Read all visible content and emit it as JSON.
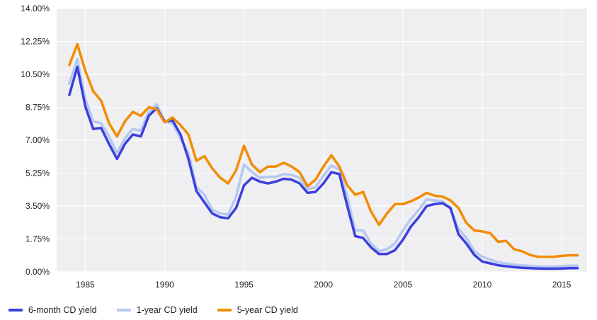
{
  "chart_data": {
    "type": "line",
    "title": "",
    "xlabel": "",
    "ylabel": "",
    "xlim": [
      1983.2,
      2016.6
    ],
    "ylim": [
      0,
      14
    ],
    "grid": true,
    "legend_position": "bottom-left",
    "x_ticks": [
      1985,
      1990,
      1995,
      2000,
      2005,
      2010,
      2015
    ],
    "x_tick_labels": [
      "1985",
      "1990",
      "1995",
      "2000",
      "2005",
      "2010",
      "2015"
    ],
    "y_ticks": [
      0,
      1.75,
      3.5,
      5.25,
      7.0,
      8.75,
      10.5,
      12.25,
      14.0
    ],
    "y_tick_labels": [
      "0.00%",
      "1.75%",
      "3.50%",
      "5.25%",
      "7.00%",
      "8.75%",
      "10.50%",
      "12.25%",
      "14.00%"
    ],
    "series": [
      {
        "name": "6-month CD yield",
        "color": "#3b3fdd",
        "x": [
          1984,
          1984.5,
          1985,
          1985.5,
          1986,
          1986.5,
          1987,
          1987.5,
          1988,
          1988.5,
          1989,
          1989.5,
          1990,
          1990.5,
          1991,
          1991.5,
          1992,
          1992.5,
          1993,
          1993.5,
          1994,
          1994.5,
          1995,
          1995.5,
          1996,
          1996.5,
          1997,
          1997.5,
          1998,
          1998.5,
          1999,
          1999.5,
          2000,
          2000.5,
          2001,
          2001.5,
          2002,
          2002.5,
          2003,
          2003.5,
          2004,
          2004.5,
          2005,
          2005.5,
          2006,
          2006.5,
          2007,
          2007.5,
          2008,
          2008.5,
          2009,
          2009.5,
          2010,
          2010.5,
          2011,
          2011.5,
          2012,
          2012.5,
          2013,
          2013.5,
          2014,
          2014.5,
          2015,
          2015.5,
          2016
        ],
        "values": [
          9.4,
          10.9,
          8.8,
          7.6,
          7.65,
          6.8,
          6.0,
          6.8,
          7.3,
          7.2,
          8.3,
          8.7,
          8.0,
          8.05,
          7.3,
          6.0,
          4.3,
          3.7,
          3.1,
          2.9,
          2.85,
          3.4,
          4.6,
          5.0,
          4.8,
          4.7,
          4.8,
          4.95,
          4.9,
          4.7,
          4.2,
          4.25,
          4.7,
          5.3,
          5.2,
          3.5,
          1.9,
          1.8,
          1.3,
          0.95,
          0.95,
          1.15,
          1.7,
          2.4,
          2.9,
          3.5,
          3.6,
          3.65,
          3.4,
          2.0,
          1.5,
          0.9,
          0.55,
          0.45,
          0.35,
          0.3,
          0.25,
          0.22,
          0.2,
          0.18,
          0.17,
          0.17,
          0.18,
          0.2,
          0.2
        ]
      },
      {
        "name": "1-year CD yield",
        "color": "#b3c8f2",
        "x": [
          1984,
          1984.5,
          1985,
          1985.5,
          1986,
          1986.5,
          1987,
          1987.5,
          1988,
          1988.5,
          1989,
          1989.5,
          1990,
          1990.5,
          1991,
          1991.5,
          1992,
          1992.5,
          1993,
          1993.5,
          1994,
          1994.5,
          1995,
          1995.5,
          1996,
          1996.5,
          1997,
          1997.5,
          1998,
          1998.5,
          1999,
          1999.5,
          2000,
          2000.5,
          2001,
          2001.5,
          2002,
          2002.5,
          2003,
          2003.5,
          2004,
          2004.5,
          2005,
          2005.5,
          2006,
          2006.5,
          2007,
          2007.5,
          2008,
          2008.5,
          2009,
          2009.5,
          2010,
          2010.5,
          2011,
          2011.5,
          2012,
          2012.5,
          2013,
          2013.5,
          2014,
          2014.5,
          2015,
          2015.5,
          2016
        ],
        "values": [
          10.0,
          11.3,
          9.2,
          8.0,
          7.9,
          7.2,
          6.3,
          7.1,
          7.6,
          7.5,
          8.5,
          8.9,
          8.0,
          7.9,
          7.1,
          6.3,
          4.5,
          4.1,
          3.3,
          3.1,
          3.05,
          4.0,
          5.7,
          5.3,
          5.0,
          5.05,
          5.05,
          5.2,
          5.15,
          5.0,
          4.4,
          4.5,
          5.1,
          5.65,
          5.45,
          4.0,
          2.2,
          2.2,
          1.5,
          1.1,
          1.2,
          1.5,
          2.2,
          2.8,
          3.3,
          3.85,
          3.8,
          3.75,
          3.35,
          2.3,
          1.8,
          1.1,
          0.8,
          0.65,
          0.5,
          0.45,
          0.38,
          0.35,
          0.32,
          0.27,
          0.27,
          0.28,
          0.3,
          0.33,
          0.33
        ]
      },
      {
        "name": "5-year CD yield",
        "color": "#f28c00",
        "x": [
          1984,
          1984.5,
          1985,
          1985.5,
          1986,
          1986.5,
          1987,
          1987.5,
          1988,
          1988.5,
          1989,
          1989.5,
          1990,
          1990.5,
          1991,
          1991.5,
          1992,
          1992.5,
          1993,
          1993.5,
          1994,
          1994.5,
          1995,
          1995.5,
          1996,
          1996.5,
          1997,
          1997.5,
          1998,
          1998.5,
          1999,
          1999.5,
          2000,
          2000.5,
          2001,
          2001.5,
          2002,
          2002.5,
          2003,
          2003.5,
          2004,
          2004.5,
          2005,
          2005.5,
          2006,
          2006.5,
          2007,
          2007.5,
          2008,
          2008.5,
          2009,
          2009.5,
          2010,
          2010.5,
          2011,
          2011.5,
          2012,
          2012.5,
          2013,
          2013.5,
          2014,
          2014.5,
          2015,
          2015.5,
          2016
        ],
        "values": [
          11.0,
          12.1,
          10.7,
          9.6,
          9.1,
          7.9,
          7.2,
          8.0,
          8.5,
          8.3,
          8.75,
          8.65,
          7.95,
          8.2,
          7.8,
          7.3,
          5.9,
          6.15,
          5.5,
          5.0,
          4.7,
          5.4,
          6.7,
          5.7,
          5.3,
          5.6,
          5.6,
          5.8,
          5.6,
          5.3,
          4.55,
          4.9,
          5.6,
          6.2,
          5.6,
          4.6,
          4.1,
          4.25,
          3.2,
          2.5,
          3.1,
          3.6,
          3.6,
          3.75,
          3.95,
          4.2,
          4.05,
          4.0,
          3.8,
          3.4,
          2.6,
          2.2,
          2.15,
          2.05,
          1.6,
          1.65,
          1.2,
          1.1,
          0.9,
          0.8,
          0.8,
          0.8,
          0.85,
          0.88,
          0.88
        ]
      }
    ]
  }
}
